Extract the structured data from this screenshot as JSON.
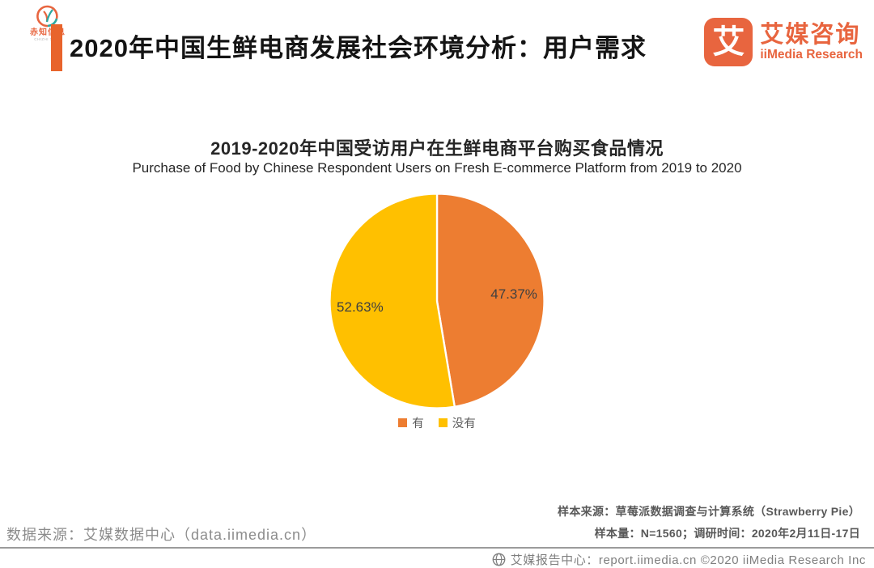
{
  "header": {
    "partner_logo": {
      "text_cn": "赤知信息",
      "text_en": "CHIZHI XINXI"
    },
    "title": "2020年中国生鲜电商发展社会环境分析：用户需求",
    "accent_color": "#E8642C",
    "brand": {
      "icon_char": "艾",
      "name_cn": "艾媒咨询",
      "name_en": "iiMedia Research",
      "color": "#E8653F"
    }
  },
  "chart_data": {
    "type": "pie",
    "title": "2019-2020年中国受访用户在生鲜电商平台购买食品情况",
    "subtitle": "Purchase of Food by Chinese Respondent Users on Fresh E-commerce Platform from 2019 to 2020",
    "categories": [
      "有",
      "没有"
    ],
    "values": [
      47.37,
      52.63
    ],
    "data_labels": [
      "47.37%",
      "52.63%"
    ],
    "colors": [
      "#ED7D31",
      "#FFC000"
    ],
    "start_angle": "top",
    "direction": "clockwise",
    "legend_position": "bottom"
  },
  "footnotes": {
    "sample_source": "样本来源：草莓派数据调查与计算系统（Strawberry Pie）",
    "sample_info": "样本量：N=1560；调研时间：2020年2月11日-17日",
    "data_source": "数据来源：艾媒数据中心（data.iimedia.cn）"
  },
  "footer": {
    "text": "艾媒报告中心：report.iimedia.cn ©2020 iiMedia Research Inc"
  }
}
